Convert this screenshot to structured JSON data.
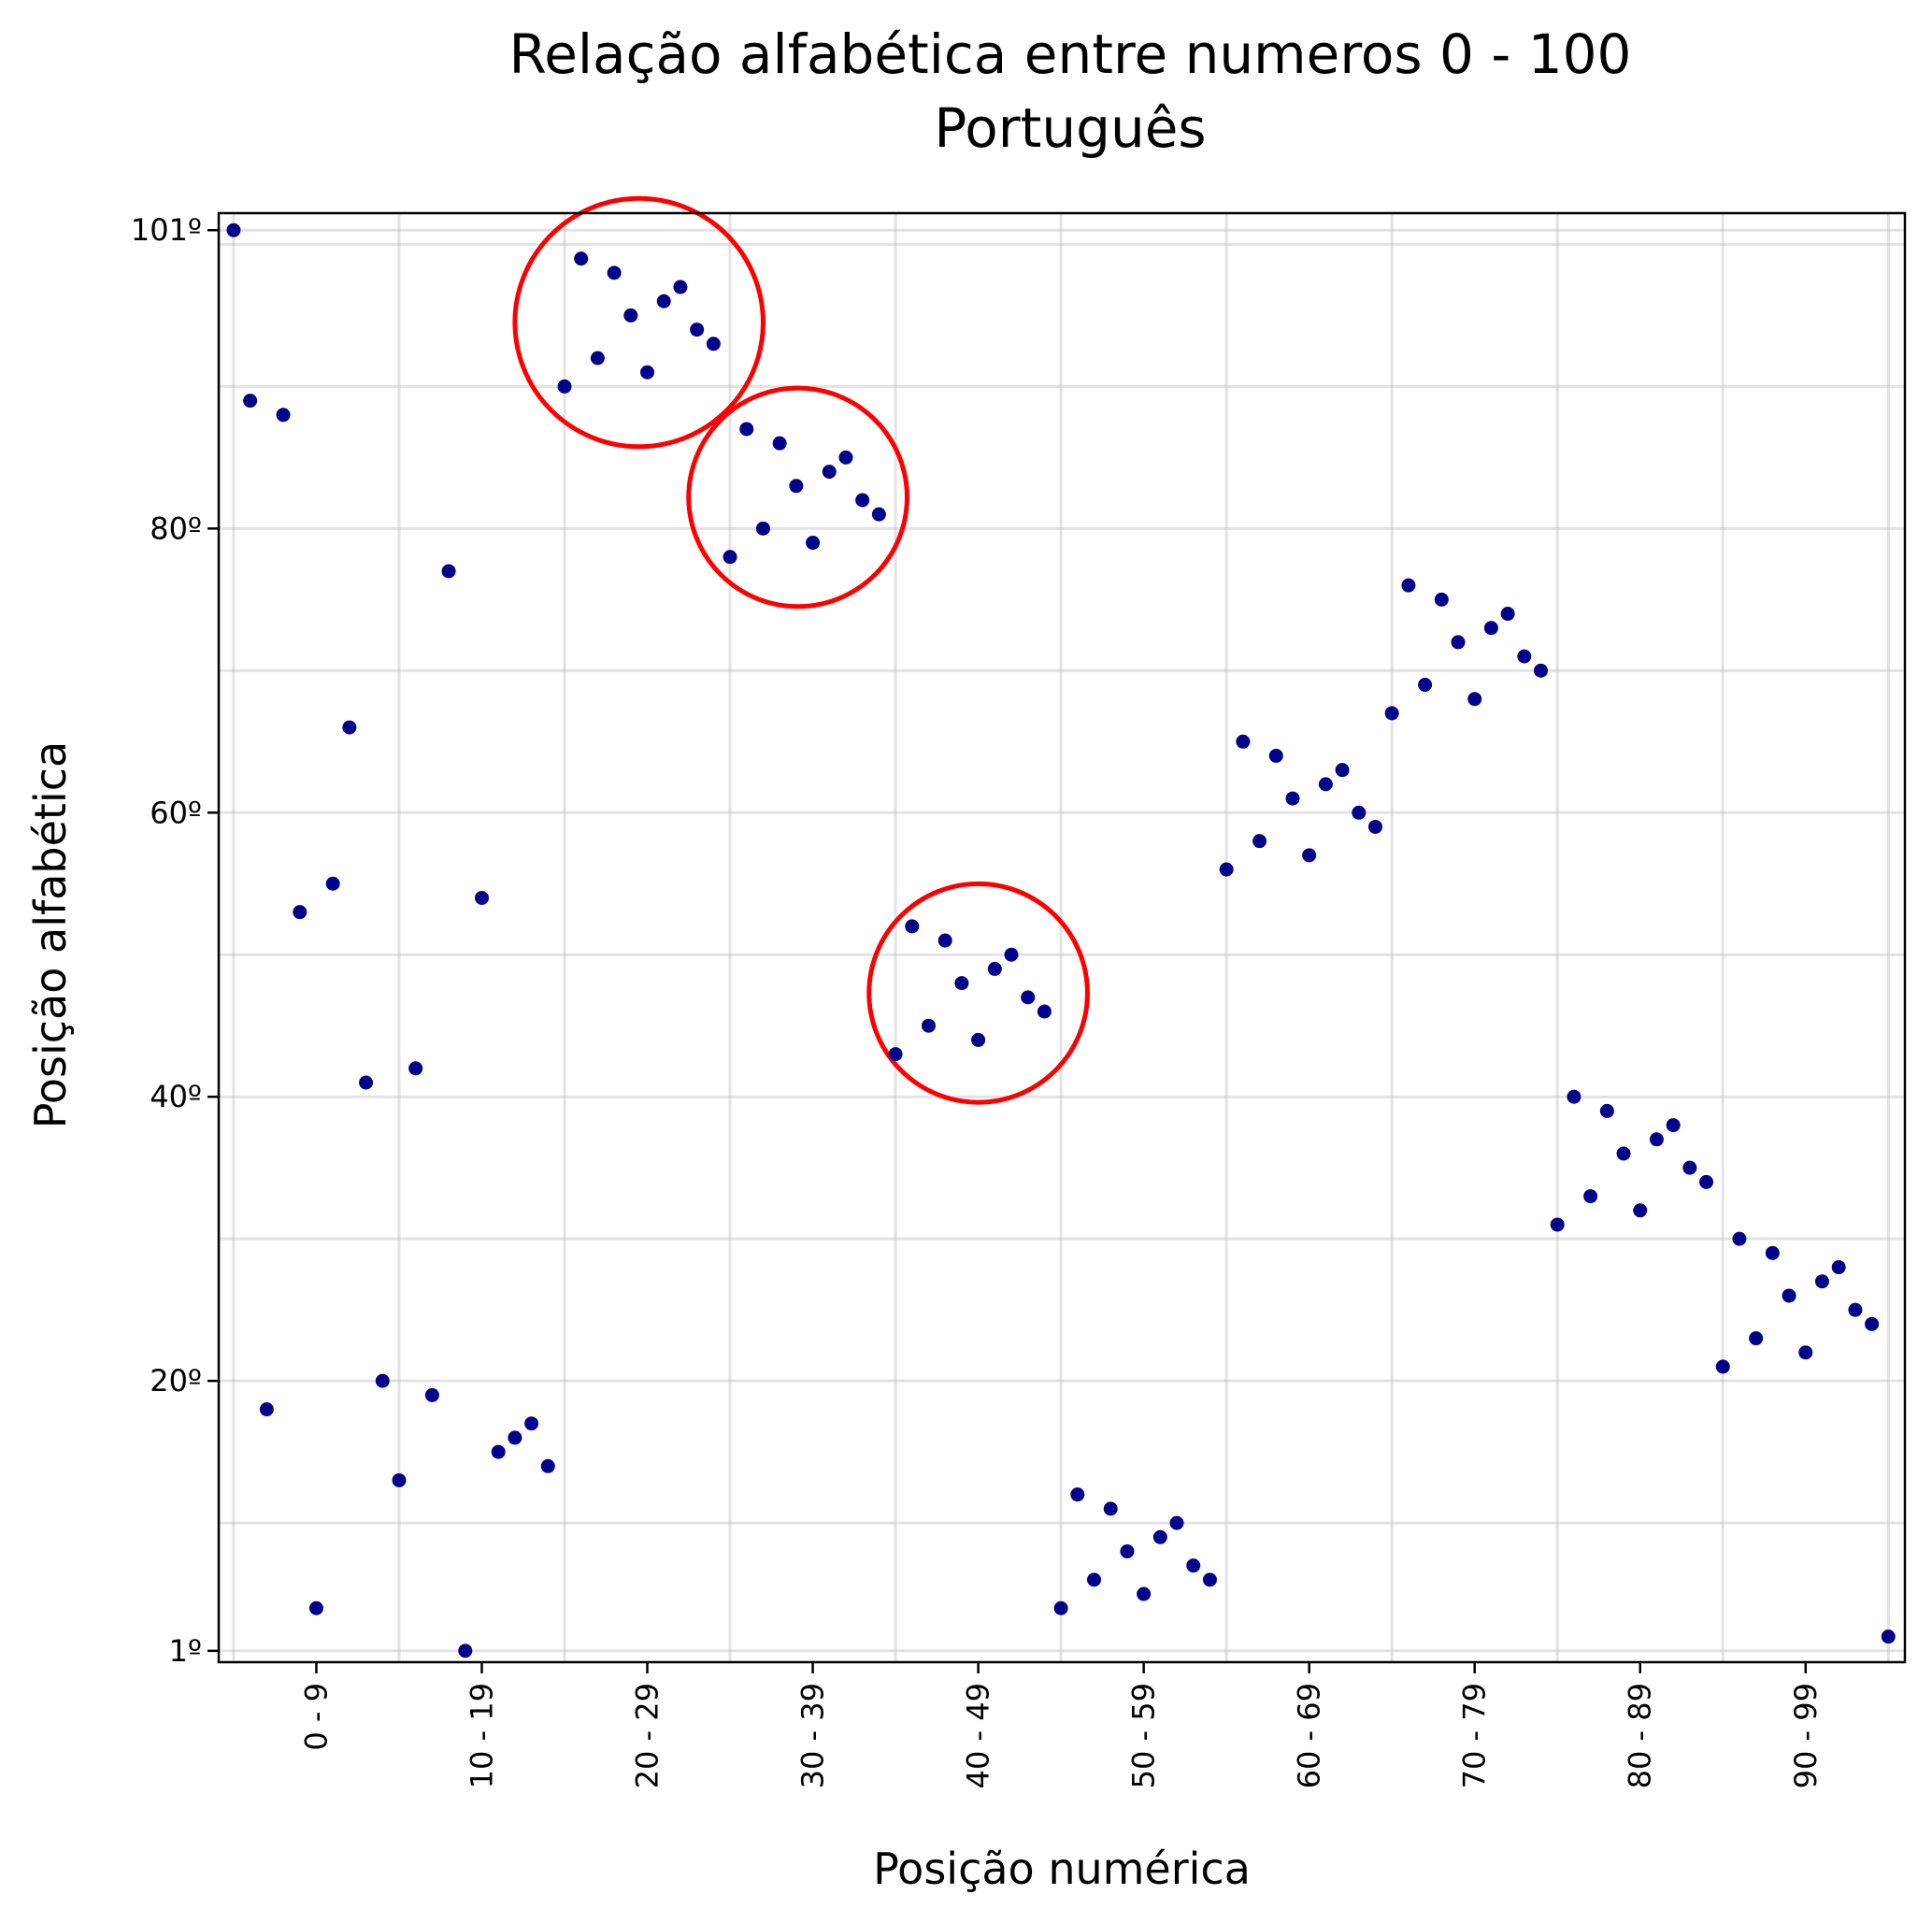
{
  "chart_data": {
    "type": "scatter",
    "title": "Relação alfabética entre numeros 0 - 100",
    "subtitle": "Português",
    "xlabel": "Posição numérica",
    "ylabel": "Posição alfabética",
    "x_ticks": [
      {
        "value": 5,
        "label": "0 - 9"
      },
      {
        "value": 15,
        "label": "10 - 19"
      },
      {
        "value": 25,
        "label": "20 - 29"
      },
      {
        "value": 35,
        "label": "30 - 39"
      },
      {
        "value": 45,
        "label": "40 - 49"
      },
      {
        "value": 55,
        "label": "50 - 59"
      },
      {
        "value": 65,
        "label": "60 - 69"
      },
      {
        "value": 75,
        "label": "70 - 79"
      },
      {
        "value": 85,
        "label": "80 - 89"
      },
      {
        "value": 95,
        "label": "90 - 99"
      }
    ],
    "y_ticks": [
      {
        "value": 1,
        "label": "1º"
      },
      {
        "value": 20,
        "label": "20º"
      },
      {
        "value": 40,
        "label": "40º"
      },
      {
        "value": 60,
        "label": "60º"
      },
      {
        "value": 80,
        "label": "80º"
      },
      {
        "value": 101,
        "label": "101º"
      }
    ],
    "xlim": [
      -0.9,
      101
    ],
    "ylim": [
      0.2,
      102.2
    ],
    "grid": true,
    "point_color": "#00008b",
    "highlight_color": "#ff0000",
    "points": [
      [
        0,
        101
      ],
      [
        1,
        89
      ],
      [
        2,
        18
      ],
      [
        3,
        88
      ],
      [
        4,
        53
      ],
      [
        5,
        4
      ],
      [
        6,
        55
      ],
      [
        7,
        66
      ],
      [
        8,
        41
      ],
      [
        9,
        20
      ],
      [
        10,
        13
      ],
      [
        11,
        42
      ],
      [
        12,
        19
      ],
      [
        13,
        77
      ],
      [
        14,
        1
      ],
      [
        15,
        54
      ],
      [
        16,
        15
      ],
      [
        17,
        16
      ],
      [
        18,
        17
      ],
      [
        19,
        14
      ],
      [
        20,
        90
      ],
      [
        21,
        99
      ],
      [
        22,
        92
      ],
      [
        23,
        98
      ],
      [
        24,
        95
      ],
      [
        25,
        91
      ],
      [
        26,
        96
      ],
      [
        27,
        97
      ],
      [
        28,
        94
      ],
      [
        29,
        93
      ],
      [
        30,
        78
      ],
      [
        31,
        87
      ],
      [
        32,
        80
      ],
      [
        33,
        86
      ],
      [
        34,
        83
      ],
      [
        35,
        79
      ],
      [
        36,
        84
      ],
      [
        37,
        85
      ],
      [
        38,
        82
      ],
      [
        39,
        81
      ],
      [
        40,
        43
      ],
      [
        41,
        52
      ],
      [
        42,
        45
      ],
      [
        43,
        51
      ],
      [
        44,
        48
      ],
      [
        45,
        44
      ],
      [
        46,
        49
      ],
      [
        47,
        50
      ],
      [
        48,
        47
      ],
      [
        49,
        46
      ],
      [
        50,
        4
      ],
      [
        51,
        12
      ],
      [
        52,
        6
      ],
      [
        53,
        11
      ],
      [
        54,
        8
      ],
      [
        55,
        5
      ],
      [
        56,
        9
      ],
      [
        57,
        10
      ],
      [
        58,
        7
      ],
      [
        59,
        6
      ],
      [
        60,
        56
      ],
      [
        61,
        65
      ],
      [
        62,
        58
      ],
      [
        63,
        64
      ],
      [
        64,
        61
      ],
      [
        65,
        57
      ],
      [
        66,
        62
      ],
      [
        67,
        63
      ],
      [
        68,
        60
      ],
      [
        69,
        59
      ],
      [
        70,
        67
      ],
      [
        71,
        76
      ],
      [
        72,
        69
      ],
      [
        73,
        75
      ],
      [
        74,
        72
      ],
      [
        75,
        68
      ],
      [
        76,
        73
      ],
      [
        77,
        74
      ],
      [
        78,
        71
      ],
      [
        79,
        70
      ],
      [
        80,
        31
      ],
      [
        81,
        40
      ],
      [
        82,
        33
      ],
      [
        83,
        39
      ],
      [
        84,
        36
      ],
      [
        85,
        32
      ],
      [
        86,
        37
      ],
      [
        87,
        38
      ],
      [
        88,
        35
      ],
      [
        89,
        34
      ],
      [
        90,
        21
      ],
      [
        91,
        30
      ],
      [
        92,
        23
      ],
      [
        93,
        29
      ],
      [
        94,
        26
      ],
      [
        95,
        22
      ],
      [
        96,
        27
      ],
      [
        97,
        28
      ],
      [
        98,
        25
      ],
      [
        99,
        24
      ],
      [
        100,
        2
      ]
    ],
    "highlights": [
      {
        "cx": 24.5,
        "cy": 94.5,
        "r": 7.5
      },
      {
        "cx": 34.1,
        "cy": 82.2,
        "r": 6.6
      },
      {
        "cx": 45.0,
        "cy": 47.3,
        "r": 6.6
      }
    ]
  }
}
